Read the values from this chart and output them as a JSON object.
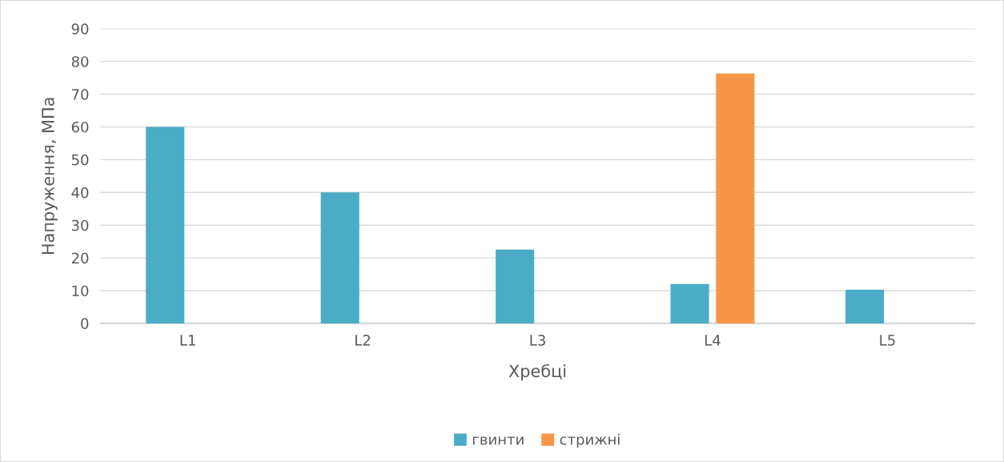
{
  "chart_data": {
    "type": "bar",
    "xlabel": "Хребці",
    "ylabel": "Напруження, МПа",
    "categories": [
      "L1",
      "L2",
      "L3",
      "L4",
      "L5"
    ],
    "series": [
      {
        "name": "гвинти",
        "color": "#4bacc6",
        "values": [
          60,
          40,
          22.5,
          12,
          10.3
        ]
      },
      {
        "name": "стрижні",
        "color": "#f79646",
        "values": [
          null,
          null,
          null,
          76.3,
          null
        ]
      }
    ],
    "ylim": [
      0,
      90
    ],
    "yticks": [
      0,
      10,
      20,
      30,
      40,
      50,
      60,
      70,
      80,
      90
    ],
    "grid": "y",
    "legend": "bottom"
  }
}
